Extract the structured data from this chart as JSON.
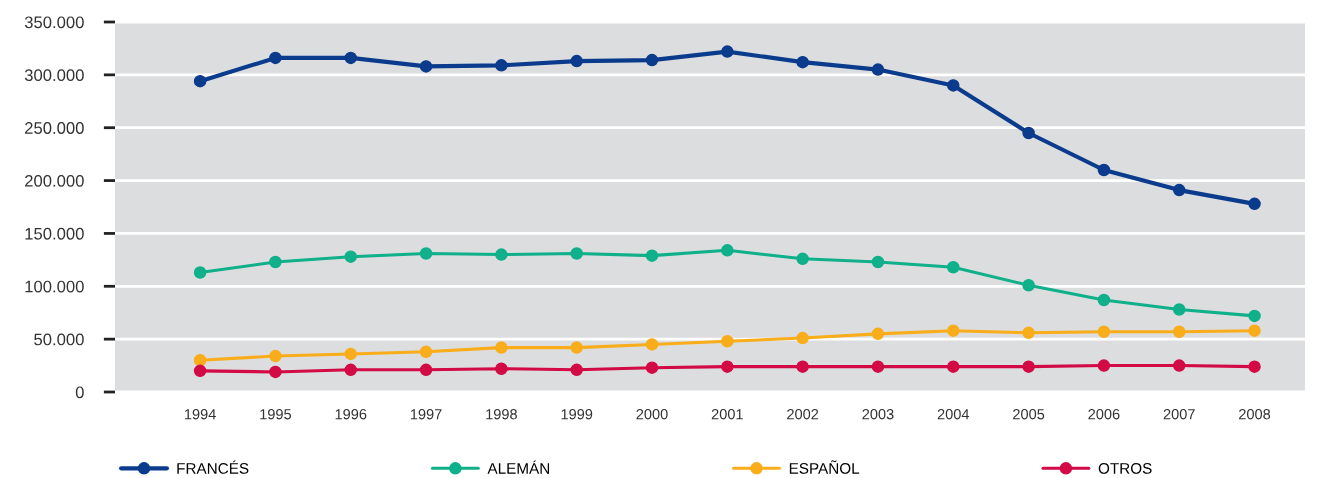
{
  "chart_data": {
    "type": "line",
    "categories": [
      "1994",
      "1995",
      "1996",
      "1997",
      "1998",
      "1999",
      "2000",
      "2001",
      "2002",
      "2003",
      "2004",
      "2005",
      "2006",
      "2007",
      "2008"
    ],
    "series": [
      {
        "name": "FRANCÉS",
        "color": "#0b3b8c",
        "values": [
          294000,
          316000,
          316000,
          308000,
          309000,
          313000,
          314000,
          322000,
          312000,
          305000,
          290000,
          245000,
          210000,
          191000,
          178000
        ]
      },
      {
        "name": "ALEMÁN",
        "color": "#0fb08a",
        "values": [
          113000,
          123000,
          128000,
          131000,
          130000,
          131000,
          129000,
          134000,
          126000,
          123000,
          118000,
          101000,
          87000,
          78000,
          72000
        ]
      },
      {
        "name": "ESPAÑOL",
        "color": "#f9ad1b",
        "values": [
          30000,
          34000,
          36000,
          38000,
          42000,
          42000,
          45000,
          48000,
          51000,
          55000,
          58000,
          56000,
          57000,
          57000,
          58000
        ]
      },
      {
        "name": "OTROS",
        "color": "#d20a45",
        "values": [
          20000,
          19000,
          21000,
          21000,
          22000,
          21000,
          23000,
          24000,
          24000,
          24000,
          24000,
          24000,
          25000,
          25000,
          24000
        ]
      }
    ],
    "ylim": [
      0,
      350000
    ],
    "yticks": [
      {
        "value": 0,
        "label": "0"
      },
      {
        "value": 50000,
        "label": "50.000"
      },
      {
        "value": 100000,
        "label": "100.000"
      },
      {
        "value": 150000,
        "label": "150.000"
      },
      {
        "value": 200000,
        "label": "200.000"
      },
      {
        "value": 250000,
        "label": "250.000"
      },
      {
        "value": 300000,
        "label": "300.000"
      },
      {
        "value": 350000,
        "label": "350.000"
      }
    ],
    "grid": "y",
    "legend": "bottom",
    "marker": "circle",
    "line_style": "solid"
  }
}
